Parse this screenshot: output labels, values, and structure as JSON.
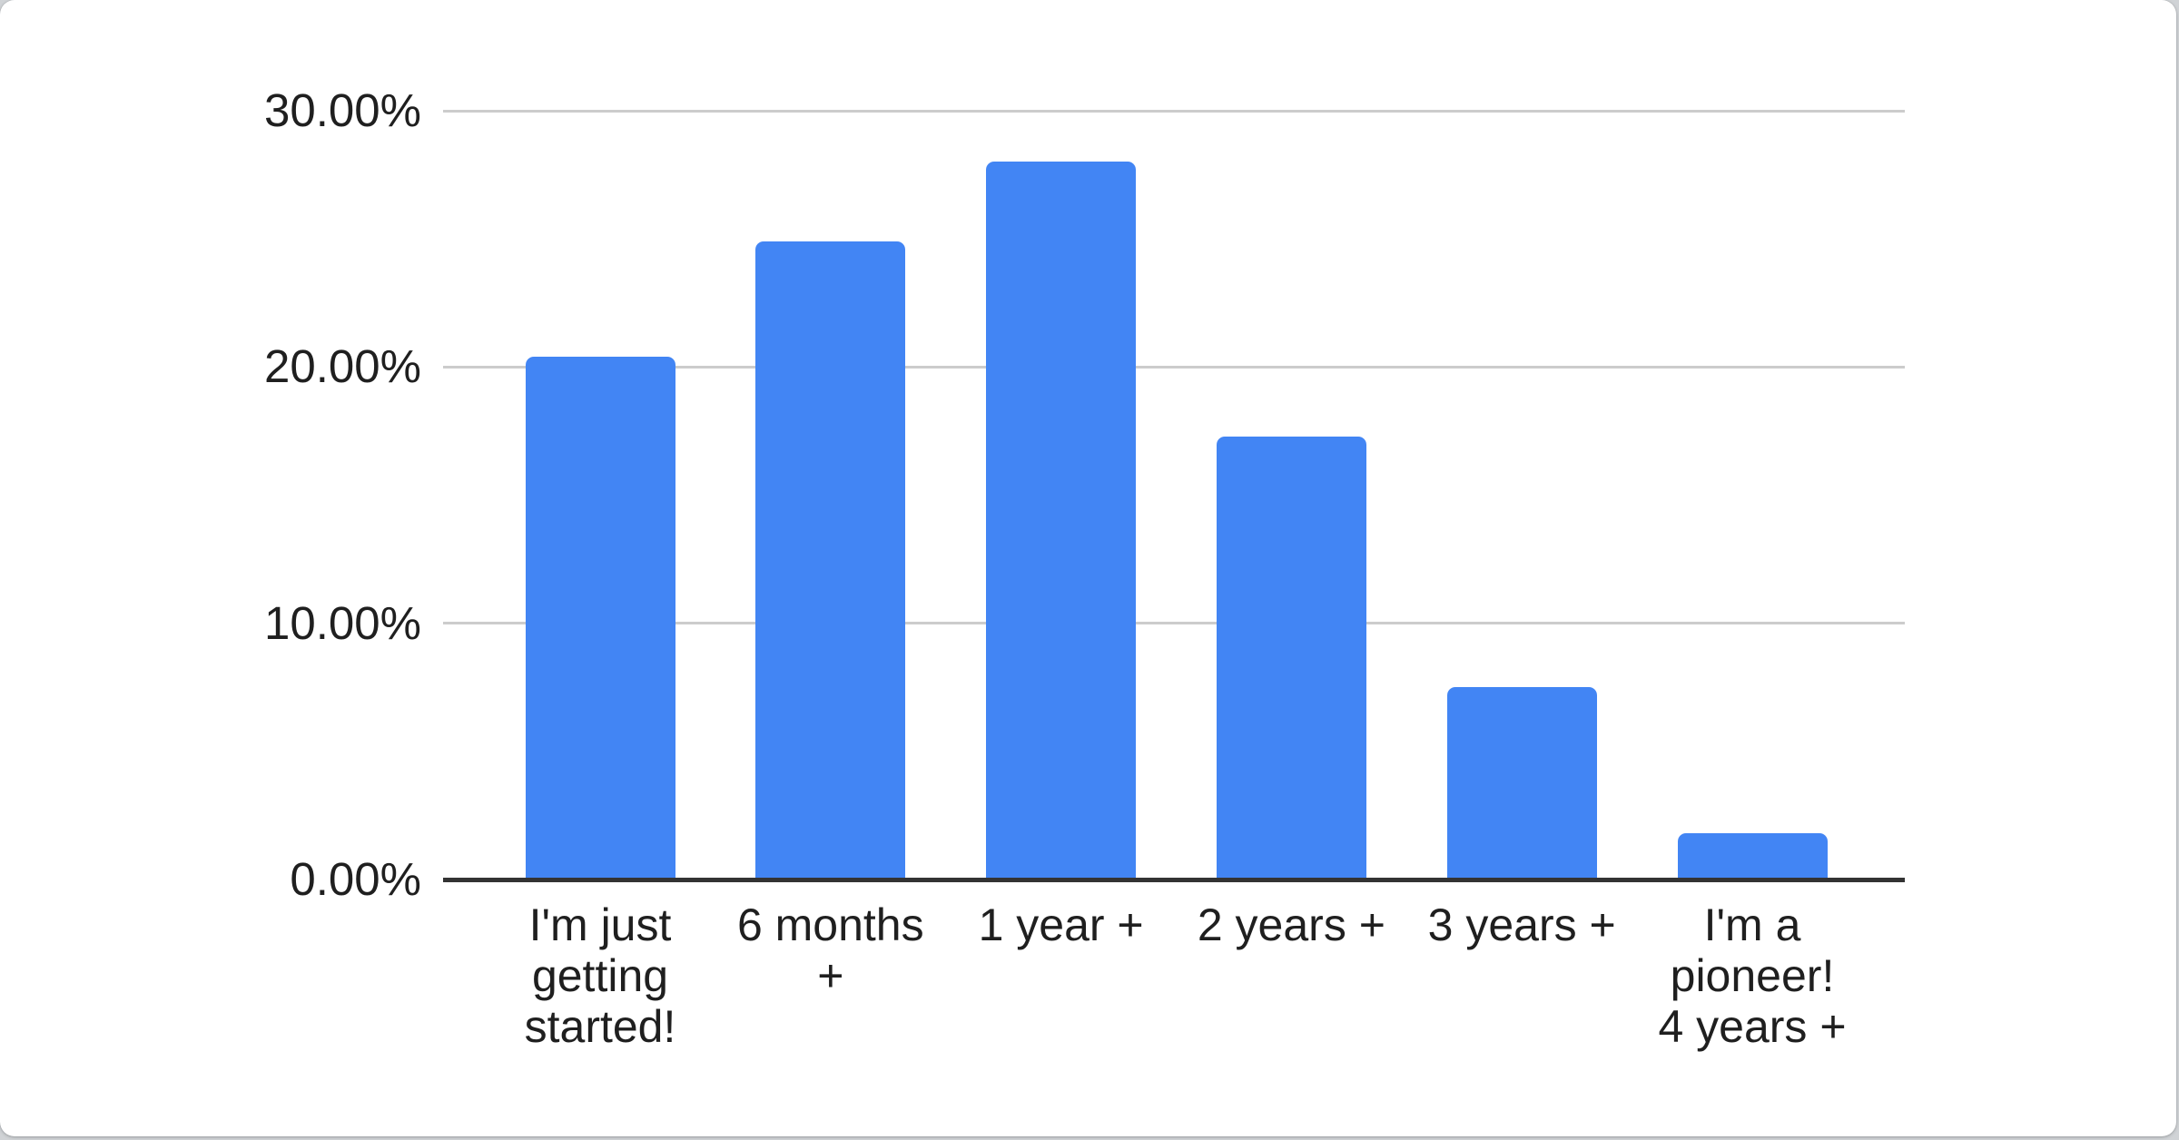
{
  "chart_data": {
    "type": "bar",
    "title": "",
    "xlabel": "",
    "ylabel": "",
    "categories": [
      "I'm just getting started!",
      "6 months +",
      "1 year +",
      "2 years +",
      "3 years +",
      "I'm a pioneer! 4 years +"
    ],
    "category_tick_lines": [
      [
        "I'm just",
        "getting",
        "started!"
      ],
      [
        "6 months",
        "+"
      ],
      [
        "1 year +"
      ],
      [
        "2 years +"
      ],
      [
        "3 years +"
      ],
      [
        "I'm a",
        "pioneer!",
        "4 years +"
      ]
    ],
    "values": [
      20.4,
      24.9,
      28.0,
      17.3,
      7.5,
      1.8
    ],
    "unit": "%",
    "y_ticks": [
      {
        "label": "30.00%",
        "value": 30
      },
      {
        "label": "20.00%",
        "value": 20
      },
      {
        "label": "10.00%",
        "value": 10
      },
      {
        "label": "0.00%",
        "value": 0
      }
    ],
    "ylim": [
      0,
      30
    ],
    "grid": "horizontal-only",
    "legend": "none",
    "colors": {
      "bar": "#4285F4",
      "gridline": "#cccccc",
      "axis": "#333333",
      "label_text": "#1f1f1f",
      "card_background": "#ffffff",
      "page_background": "#d0d3d6"
    }
  }
}
